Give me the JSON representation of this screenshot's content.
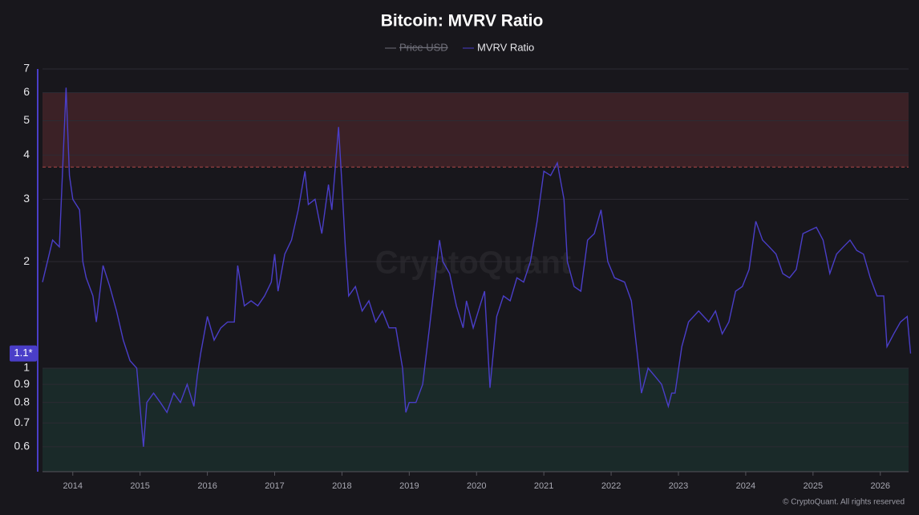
{
  "chart_data": {
    "type": "line",
    "title": "Bitcoin: MVRV Ratio",
    "legend": [
      {
        "name": "Price USD",
        "color": "#6e6e78",
        "hidden": true
      }
    ],
    "series": [
      {
        "name": "MVRV Ratio",
        "color": "#4a3ec8",
        "x": [
          2013.55,
          2013.7,
          2013.8,
          2013.9,
          2013.95,
          2014.0,
          2014.1,
          2014.15,
          2014.2,
          2014.3,
          2014.35,
          2014.45,
          2014.55,
          2014.65,
          2014.75,
          2014.85,
          2014.95,
          2015.05,
          2015.1,
          2015.2,
          2015.3,
          2015.4,
          2015.5,
          2015.6,
          2015.7,
          2015.8,
          2015.85,
          2015.9,
          2016.0,
          2016.1,
          2016.2,
          2016.3,
          2016.4,
          2016.45,
          2016.55,
          2016.65,
          2016.75,
          2016.85,
          2016.95,
          2017.0,
          2017.05,
          2017.15,
          2017.25,
          2017.35,
          2017.45,
          2017.5,
          2017.6,
          2017.7,
          2017.8,
          2017.85,
          2017.95,
          2018.0,
          2018.05,
          2018.1,
          2018.2,
          2018.3,
          2018.4,
          2018.5,
          2018.6,
          2018.7,
          2018.8,
          2018.9,
          2018.95,
          2019.0,
          2019.1,
          2019.2,
          2019.3,
          2019.45,
          2019.5,
          2019.6,
          2019.7,
          2019.8,
          2019.85,
          2019.95,
          2020.05,
          2020.12,
          2020.2,
          2020.3,
          2020.4,
          2020.5,
          2020.6,
          2020.7,
          2020.8,
          2020.9,
          2021.0,
          2021.1,
          2021.2,
          2021.3,
          2021.35,
          2021.45,
          2021.55,
          2021.65,
          2021.75,
          2021.85,
          2021.95,
          2022.05,
          2022.2,
          2022.3,
          2022.4,
          2022.45,
          2022.55,
          2022.65,
          2022.75,
          2022.85,
          2022.9,
          2022.95,
          2023.05,
          2023.15,
          2023.3,
          2023.45,
          2023.55,
          2023.65,
          2023.75,
          2023.85,
          2023.95,
          2024.05,
          2024.15,
          2024.25,
          2024.35,
          2024.45,
          2024.55,
          2024.65,
          2024.75,
          2024.85,
          2024.95,
          2025.05,
          2025.15,
          2025.25,
          2025.35,
          2025.45,
          2025.55,
          2025.65,
          2025.75,
          2025.85,
          2025.95,
          2026.05,
          2026.1,
          2026.2,
          2026.3,
          2026.4,
          2026.45
        ],
        "values": [
          1.75,
          2.3,
          2.2,
          6.2,
          3.5,
          3.0,
          2.8,
          2.0,
          1.8,
          1.6,
          1.35,
          1.95,
          1.7,
          1.45,
          1.2,
          1.05,
          1.0,
          0.6,
          0.8,
          0.85,
          0.8,
          0.75,
          0.85,
          0.8,
          0.9,
          0.78,
          0.95,
          1.1,
          1.4,
          1.2,
          1.3,
          1.35,
          1.35,
          1.95,
          1.5,
          1.55,
          1.5,
          1.6,
          1.75,
          2.1,
          1.65,
          2.1,
          2.3,
          2.8,
          3.6,
          2.9,
          3.0,
          2.4,
          3.3,
          2.8,
          4.8,
          3.3,
          2.2,
          1.6,
          1.7,
          1.45,
          1.55,
          1.35,
          1.45,
          1.3,
          1.3,
          1.0,
          0.75,
          0.8,
          0.8,
          0.9,
          1.3,
          2.3,
          2.0,
          1.85,
          1.5,
          1.3,
          1.55,
          1.3,
          1.5,
          1.65,
          0.88,
          1.4,
          1.6,
          1.55,
          1.8,
          1.75,
          2.0,
          2.6,
          3.6,
          3.5,
          3.8,
          3.0,
          2.0,
          1.7,
          1.65,
          2.3,
          2.4,
          2.8,
          2.0,
          1.8,
          1.75,
          1.55,
          1.05,
          0.85,
          1.0,
          0.95,
          0.9,
          0.78,
          0.85,
          0.85,
          1.15,
          1.35,
          1.45,
          1.35,
          1.45,
          1.25,
          1.35,
          1.65,
          1.7,
          1.9,
          2.6,
          2.3,
          2.2,
          2.1,
          1.85,
          1.8,
          1.9,
          2.4,
          2.45,
          2.5,
          2.3,
          1.85,
          2.1,
          2.2,
          2.3,
          2.15,
          2.1,
          1.8,
          1.6,
          1.6,
          1.15,
          1.25,
          1.35,
          1.4,
          1.1
        ],
        "last_value_label": "1.1*"
      }
    ],
    "bands": [
      {
        "from": 3.7,
        "to": 6,
        "color": "#5a2a30"
      },
      {
        "from": 0.51,
        "to": 1,
        "color": "#1e3a34"
      }
    ],
    "log_y": true,
    "grid": true,
    "xlim": [
      2013.55,
      2026.42
    ],
    "xticks": [
      2014,
      2015,
      2016,
      2017,
      2018,
      2019,
      2020,
      2021,
      2022,
      2023,
      2024,
      2025,
      2026
    ],
    "ylim": [
      0.51,
      7
    ],
    "yticks": [
      0.6,
      0.7,
      0.8,
      0.9,
      1,
      2,
      3,
      4,
      5,
      6,
      7
    ],
    "watermark": "CryptoQuant",
    "footer": "© CryptoQuant. All rights reserved"
  }
}
